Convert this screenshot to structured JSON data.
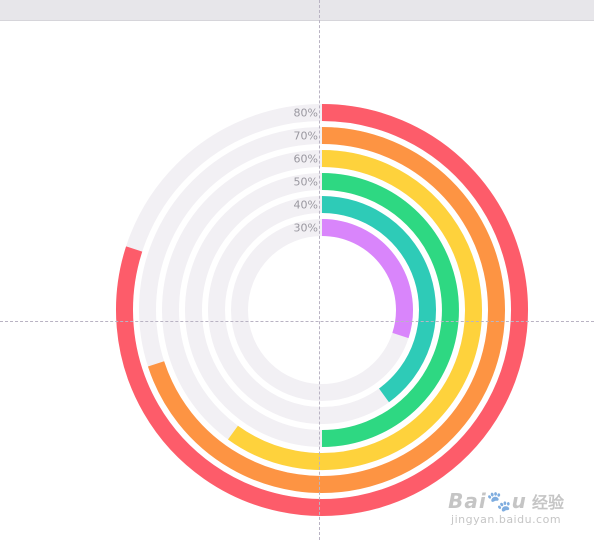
{
  "chart_data": {
    "type": "radial_bar",
    "series": [
      {
        "label": "80%",
        "value": 80,
        "color": "#fd5c6a"
      },
      {
        "label": "70%",
        "value": 70,
        "color": "#fd9443"
      },
      {
        "label": "60%",
        "value": 60,
        "color": "#fed23c"
      },
      {
        "label": "50%",
        "value": 50,
        "color": "#2ed882"
      },
      {
        "label": "40%",
        "value": 40,
        "color": "#2ecbb7"
      },
      {
        "label": "30%",
        "value": 30,
        "color": "#d985fb"
      }
    ],
    "max": 100,
    "track_color": "#f2f0f4"
  },
  "watermark": {
    "brand": "Bai",
    "brand_end": "u",
    "paw": "🐾",
    "cn": "经验",
    "url": "jingyan.baidu.com"
  }
}
